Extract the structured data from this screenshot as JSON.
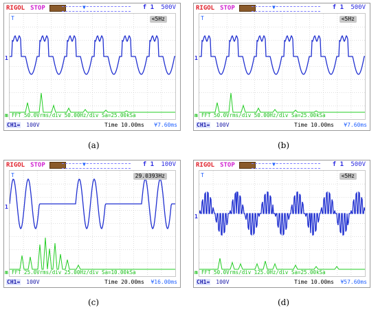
{
  "colors": {
    "waveform": "#1f2fd0",
    "fft": "#22cc22",
    "grid": "#bdbdbd",
    "brand": "#e0202a",
    "stop": "#d020d0"
  },
  "panels": [
    {
      "id": "a",
      "caption": "(a)",
      "brand": "RIGOL",
      "status": "STOP",
      "trigger_icons": "f 1",
      "trigger_level": "500V",
      "freq_badge": "<5Hz",
      "fft_info": "FFT  50.0Vrms/div  50.00Hz/div  Sa=25.00kSa",
      "ch1_label": "CH1=",
      "ch1_scale": "100V",
      "timebase": "Time 10.00ms",
      "offset": "¥7.60ms",
      "wave": "quasi-square",
      "wave_marker": "1",
      "fft_marker": "m",
      "trigger_marker": "T"
    },
    {
      "id": "b",
      "caption": "(b)",
      "brand": "RIGOL",
      "status": "STOP",
      "trigger_icons": "f 1",
      "trigger_level": "500V",
      "freq_badge": "<5Hz",
      "fft_info": "FFT  50.0Vrms/div  50.00Hz/div  Sa=25.00kSa",
      "ch1_label": "CH1=",
      "ch1_scale": "100V",
      "timebase": "Time 10.00ms",
      "offset": "¥7.60ms",
      "wave": "quasi-square",
      "wave_marker": "1",
      "fft_marker": "m",
      "trigger_marker": "T"
    },
    {
      "id": "c",
      "caption": "(c)",
      "brand": "RIGOL",
      "status": "STOP",
      "trigger_icons": "f 1",
      "trigger_level": "100V",
      "freq_badge": "29.0393Hz",
      "fft_info": "FFT  25.0Vrms/div  25.00Hz/div  Sa=10.00kSa",
      "ch1_label": "CH1=",
      "ch1_scale": "100V",
      "timebase": "Time 20.00ms",
      "offset": "¥16.00ms",
      "wave": "burst",
      "wave_marker": "1",
      "fft_marker": "m",
      "trigger_marker": "T"
    },
    {
      "id": "d",
      "caption": "(d)",
      "brand": "RIGOL",
      "status": "STOP",
      "trigger_icons": "f 1",
      "trigger_level": "500V",
      "freq_badge": "<5Hz",
      "fft_info": "FFT  50.0Vrms/div  125.0Hz/div  Sa=25.00kSa",
      "ch1_label": "CH1=",
      "ch1_scale": "100V",
      "timebase": "Time 10.00ms",
      "offset": "¥57.60ms",
      "wave": "pwm",
      "wave_marker": "1",
      "fft_marker": "m",
      "trigger_marker": "T"
    }
  ]
}
